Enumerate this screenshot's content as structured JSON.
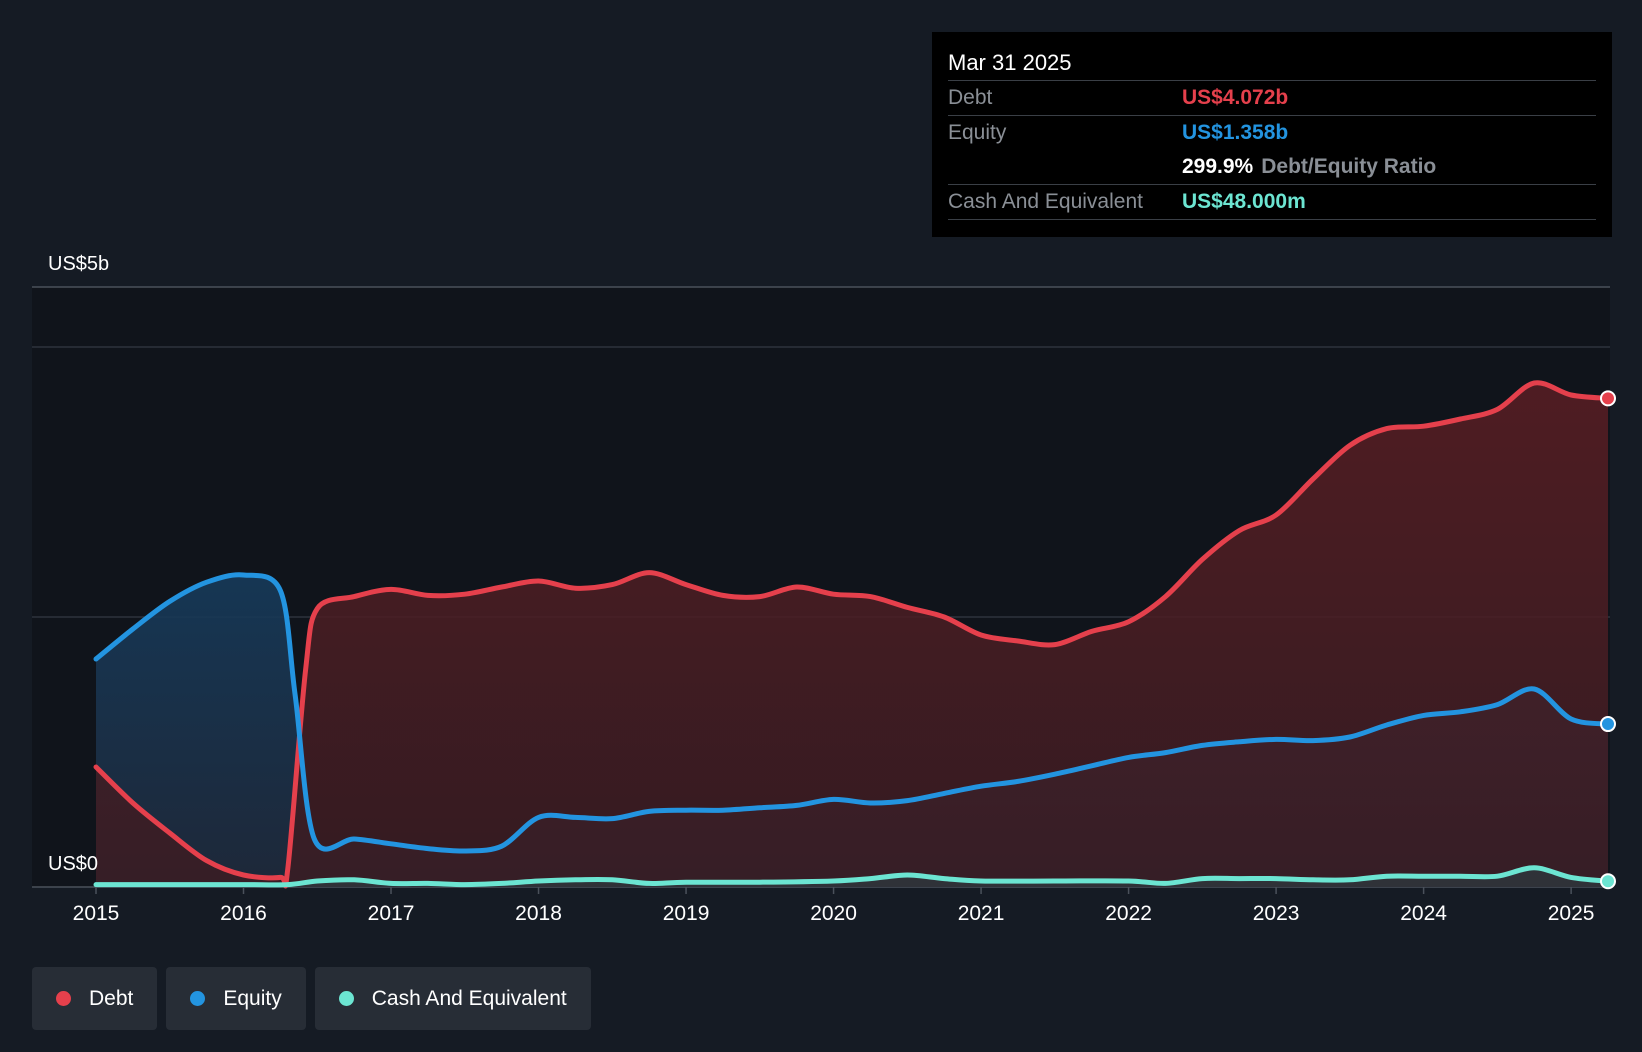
{
  "tooltip": {
    "date": "Mar 31 2025",
    "debt_label": "Debt",
    "debt_value": "US$4.072b",
    "equity_label": "Equity",
    "equity_value": "US$1.358b",
    "ratio_value": "299.9%",
    "ratio_label": "Debt/Equity Ratio",
    "cash_label": "Cash And Equivalent",
    "cash_value": "US$48.000m"
  },
  "legend": [
    {
      "label": "Debt",
      "color": "#e5404c"
    },
    {
      "label": "Equity",
      "color": "#2394e0"
    },
    {
      "label": "Cash And Equivalent",
      "color": "#6ce5d2"
    }
  ],
  "chart_data": {
    "type": "area",
    "title": "",
    "ylabel_top": "US$5b",
    "ylabel_bottom": "US$0",
    "ylim": [
      0,
      5.0
    ],
    "xlim": [
      2015.0,
      2025.25
    ],
    "grid_values": [
      4.5,
      2.25
    ],
    "x_ticks": [
      "2015",
      "2016",
      "2017",
      "2018",
      "2019",
      "2020",
      "2021",
      "2022",
      "2023",
      "2024",
      "2025"
    ],
    "series": [
      {
        "name": "Debt",
        "color": "#e5404c",
        "points": [
          [
            2015.0,
            1.0
          ],
          [
            2015.25,
            0.7
          ],
          [
            2015.5,
            0.45
          ],
          [
            2015.75,
            0.22
          ],
          [
            2016.0,
            0.1
          ],
          [
            2016.25,
            0.08
          ],
          [
            2016.3,
            0.15
          ],
          [
            2016.42,
            1.8
          ],
          [
            2016.5,
            2.32
          ],
          [
            2016.75,
            2.42
          ],
          [
            2017.0,
            2.48
          ],
          [
            2017.25,
            2.43
          ],
          [
            2017.5,
            2.44
          ],
          [
            2017.75,
            2.5
          ],
          [
            2018.0,
            2.55
          ],
          [
            2018.25,
            2.49
          ],
          [
            2018.5,
            2.52
          ],
          [
            2018.75,
            2.62
          ],
          [
            2019.0,
            2.52
          ],
          [
            2019.25,
            2.43
          ],
          [
            2019.5,
            2.42
          ],
          [
            2019.75,
            2.5
          ],
          [
            2020.0,
            2.44
          ],
          [
            2020.25,
            2.42
          ],
          [
            2020.5,
            2.33
          ],
          [
            2020.75,
            2.25
          ],
          [
            2021.0,
            2.1
          ],
          [
            2021.25,
            2.05
          ],
          [
            2021.5,
            2.02
          ],
          [
            2021.75,
            2.13
          ],
          [
            2022.0,
            2.21
          ],
          [
            2022.25,
            2.42
          ],
          [
            2022.5,
            2.73
          ],
          [
            2022.75,
            2.97
          ],
          [
            2023.0,
            3.1
          ],
          [
            2023.25,
            3.4
          ],
          [
            2023.5,
            3.68
          ],
          [
            2023.75,
            3.82
          ],
          [
            2024.0,
            3.84
          ],
          [
            2024.25,
            3.9
          ],
          [
            2024.5,
            3.98
          ],
          [
            2024.75,
            4.2
          ],
          [
            2025.0,
            4.1
          ],
          [
            2025.25,
            4.072
          ]
        ]
      },
      {
        "name": "Equity",
        "color": "#2394e0",
        "points": [
          [
            2015.0,
            1.9
          ],
          [
            2015.25,
            2.15
          ],
          [
            2015.5,
            2.38
          ],
          [
            2015.75,
            2.54
          ],
          [
            2016.0,
            2.6
          ],
          [
            2016.25,
            2.47
          ],
          [
            2016.35,
            1.6
          ],
          [
            2016.48,
            0.4
          ],
          [
            2016.75,
            0.4
          ],
          [
            2017.0,
            0.36
          ],
          [
            2017.25,
            0.32
          ],
          [
            2017.5,
            0.3
          ],
          [
            2017.75,
            0.34
          ],
          [
            2018.0,
            0.58
          ],
          [
            2018.25,
            0.58
          ],
          [
            2018.5,
            0.57
          ],
          [
            2018.75,
            0.63
          ],
          [
            2019.0,
            0.64
          ],
          [
            2019.25,
            0.64
          ],
          [
            2019.5,
            0.66
          ],
          [
            2019.75,
            0.68
          ],
          [
            2020.0,
            0.73
          ],
          [
            2020.25,
            0.7
          ],
          [
            2020.5,
            0.72
          ],
          [
            2020.75,
            0.78
          ],
          [
            2021.0,
            0.84
          ],
          [
            2021.25,
            0.88
          ],
          [
            2021.5,
            0.94
          ],
          [
            2021.75,
            1.01
          ],
          [
            2022.0,
            1.08
          ],
          [
            2022.25,
            1.12
          ],
          [
            2022.5,
            1.18
          ],
          [
            2022.75,
            1.21
          ],
          [
            2023.0,
            1.23
          ],
          [
            2023.25,
            1.22
          ],
          [
            2023.5,
            1.25
          ],
          [
            2023.75,
            1.35
          ],
          [
            2024.0,
            1.43
          ],
          [
            2024.25,
            1.46
          ],
          [
            2024.5,
            1.52
          ],
          [
            2024.75,
            1.65
          ],
          [
            2025.0,
            1.4
          ],
          [
            2025.25,
            1.358
          ]
        ]
      },
      {
        "name": "Cash And Equivalent",
        "color": "#6ce5d2",
        "points": [
          [
            2015.0,
            0.02
          ],
          [
            2015.5,
            0.02
          ],
          [
            2016.0,
            0.02
          ],
          [
            2016.3,
            0.02
          ],
          [
            2016.5,
            0.05
          ],
          [
            2016.75,
            0.06
          ],
          [
            2017.0,
            0.03
          ],
          [
            2017.25,
            0.03
          ],
          [
            2017.5,
            0.02
          ],
          [
            2017.75,
            0.03
          ],
          [
            2018.0,
            0.05
          ],
          [
            2018.25,
            0.06
          ],
          [
            2018.5,
            0.06
          ],
          [
            2018.75,
            0.03
          ],
          [
            2019.0,
            0.04
          ],
          [
            2019.5,
            0.04
          ],
          [
            2020.0,
            0.05
          ],
          [
            2020.25,
            0.07
          ],
          [
            2020.5,
            0.1
          ],
          [
            2020.75,
            0.07
          ],
          [
            2021.0,
            0.05
          ],
          [
            2021.5,
            0.05
          ],
          [
            2022.0,
            0.05
          ],
          [
            2022.25,
            0.03
          ],
          [
            2022.5,
            0.07
          ],
          [
            2022.75,
            0.07
          ],
          [
            2023.0,
            0.07
          ],
          [
            2023.25,
            0.06
          ],
          [
            2023.5,
            0.06
          ],
          [
            2023.75,
            0.09
          ],
          [
            2024.0,
            0.09
          ],
          [
            2024.25,
            0.09
          ],
          [
            2024.5,
            0.09
          ],
          [
            2024.75,
            0.16
          ],
          [
            2025.0,
            0.08
          ],
          [
            2025.25,
            0.048
          ]
        ]
      }
    ]
  }
}
